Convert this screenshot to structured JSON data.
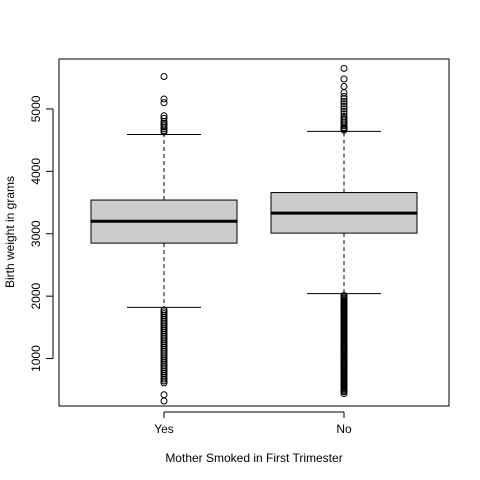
{
  "chart_data": {
    "type": "boxplot",
    "title": "",
    "xlabel": "Mother Smoked in First Trimester",
    "ylabel": "Birth weight in grams",
    "ylim": [
      240,
      5800
    ],
    "yticks": [
      1000,
      2000,
      3000,
      4000,
      5000
    ],
    "grid": false,
    "categories": [
      "Yes",
      "No"
    ],
    "box_fill": "#cccccc",
    "boxes": [
      {
        "category": "Yes",
        "lower_whisker": 1820,
        "q1": 2850,
        "median": 3200,
        "q3": 3540,
        "upper_whisker": 4590,
        "outliers": [
          5520,
          5160,
          5100,
          4890,
          4850,
          4800,
          4770,
          4740,
          4710,
          4680,
          4650,
          4630,
          1780,
          1750,
          1720,
          1690,
          1660,
          1630,
          1600,
          1570,
          1540,
          1510,
          1480,
          1450,
          1420,
          1390,
          1360,
          1330,
          1300,
          1270,
          1240,
          1210,
          1180,
          1150,
          1120,
          1090,
          1060,
          1030,
          1000,
          970,
          940,
          910,
          880,
          850,
          820,
          790,
          760,
          730,
          700,
          670,
          640,
          610,
          420,
          320
        ]
      },
      {
        "category": "No",
        "lower_whisker": 2040,
        "q1": 3010,
        "median": 3330,
        "q3": 3660,
        "upper_whisker": 4640,
        "outliers": [
          5650,
          5480,
          5360,
          5260,
          5200,
          5160,
          5120,
          5080,
          5040,
          5000,
          4960,
          4920,
          4880,
          4850,
          4820,
          4790,
          4760,
          4730,
          4700,
          4680,
          4660,
          2010,
          1990,
          1970,
          1950,
          1930,
          1910,
          1890,
          1870,
          1850,
          1830,
          1810,
          1790,
          1770,
          1750,
          1730,
          1710,
          1690,
          1670,
          1650,
          1630,
          1610,
          1590,
          1570,
          1550,
          1530,
          1510,
          1490,
          1470,
          1450,
          1430,
          1410,
          1390,
          1370,
          1350,
          1330,
          1310,
          1290,
          1270,
          1250,
          1230,
          1210,
          1190,
          1170,
          1150,
          1130,
          1110,
          1090,
          1070,
          1050,
          1030,
          1010,
          990,
          970,
          950,
          930,
          910,
          890,
          870,
          850,
          830,
          810,
          790,
          770,
          750,
          730,
          710,
          690,
          670,
          650,
          630,
          610,
          590,
          570,
          550,
          530,
          510,
          490,
          470,
          440
        ]
      }
    ]
  }
}
